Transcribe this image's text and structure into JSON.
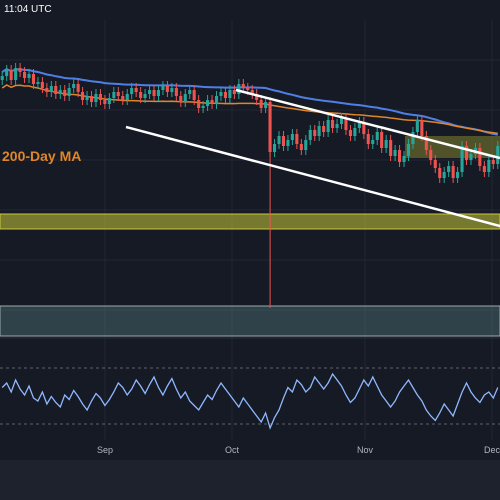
{
  "header": {
    "timestamp": "11:04 UTC"
  },
  "colors": {
    "background": "#161a25",
    "bottom_bar": "#1e222d",
    "grid": "#232735",
    "candle_up": "#26a69a",
    "candle_down": "#ef5350",
    "ma_blue": "#4f7fe6",
    "ma_orange": "#e0862a",
    "support_zone": "#c8c83a",
    "resistance_zone": "#8a8a2e",
    "lower_zone": "#5f8f8e",
    "channel_lines": "#ffffff",
    "rsi_line": "#8fb8ff",
    "axis_text": "#b2b5be"
  },
  "chart_data": [
    {
      "type": "candlestick",
      "title": "",
      "x_labels": [
        "Sep",
        "Oct",
        "Nov",
        "Dec"
      ],
      "annotations": [
        {
          "text": "200-Day MA",
          "color": "orange"
        }
      ],
      "close_values": [
        92,
        95,
        90,
        96,
        94,
        91,
        93,
        88,
        89,
        86,
        84,
        87,
        83,
        85,
        82,
        86,
        88,
        84,
        80,
        82,
        79,
        83,
        80,
        78,
        81,
        84,
        82,
        80,
        83,
        86,
        84,
        81,
        83,
        85,
        82,
        85,
        87,
        84,
        86,
        82,
        79,
        83,
        85,
        80,
        76,
        77,
        80,
        78,
        82,
        84,
        81,
        85,
        83,
        88,
        86,
        85,
        83,
        80,
        76,
        79,
        54,
        58,
        62,
        57,
        60,
        63,
        58,
        55,
        60,
        65,
        62,
        67,
        64,
        70,
        66,
        68,
        71,
        65,
        62,
        66,
        69,
        63,
        58,
        60,
        64,
        56,
        60,
        52,
        55,
        49,
        52,
        58,
        64,
        70,
        62,
        55,
        50,
        46,
        41,
        44,
        47,
        41,
        44,
        57,
        50,
        53,
        56,
        47,
        44,
        50,
        48,
        57
      ],
      "drawn_lines": [
        "descending channel upper",
        "descending channel lower",
        "200-day moving average",
        "blue moving average"
      ],
      "zones": [
        "yellow support zone",
        "olive resistance zone",
        "teal lower demand zone"
      ],
      "wick_spike_month": "Oct"
    },
    {
      "type": "line",
      "title": "",
      "indicator": "oscillator",
      "values": [
        55,
        58,
        52,
        60,
        54,
        50,
        56,
        48,
        46,
        52,
        44,
        49,
        45,
        42,
        50,
        47,
        53,
        49,
        44,
        40,
        46,
        51,
        48,
        43,
        47,
        52,
        58,
        55,
        50,
        54,
        60,
        56,
        51,
        57,
        62,
        55,
        50,
        56,
        61,
        54,
        48,
        52,
        46,
        43,
        40,
        45,
        50,
        47,
        53,
        58,
        54,
        50,
        46,
        42,
        48,
        44,
        40,
        36,
        32,
        38,
        28,
        35,
        40,
        48,
        55,
        52,
        60,
        57,
        52,
        55,
        62,
        58,
        54,
        58,
        64,
        60,
        56,
        50,
        45,
        48,
        54,
        60,
        56,
        62,
        56,
        50,
        46,
        42,
        46,
        52,
        56,
        60,
        55,
        50,
        46,
        40,
        36,
        33,
        38,
        44,
        40,
        36,
        44,
        52,
        58,
        52,
        48,
        45,
        50,
        52,
        48,
        55
      ]
    }
  ]
}
